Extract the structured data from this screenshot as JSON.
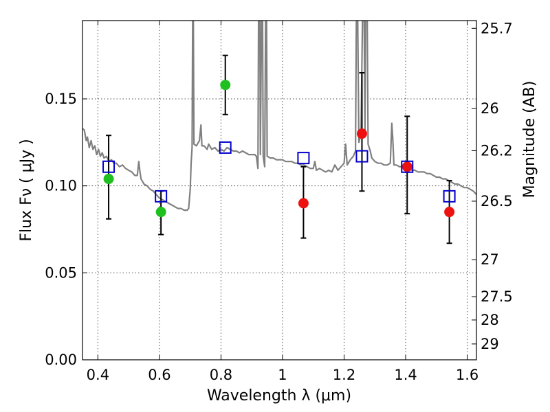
{
  "chart_data": {
    "type": "scatter",
    "xlabel": "Wavelength  λ (μm)",
    "ylabel": "Flux  Fν  ( μJy )",
    "y2label": "Magnitude (AB)",
    "xlim": [
      0.35,
      1.63
    ],
    "ylim": [
      0.0,
      0.195
    ],
    "grid": true,
    "x_ticks": [
      {
        "value": 0.4,
        "label": "0.4"
      },
      {
        "value": 0.6,
        "label": "0.6"
      },
      {
        "value": 0.8,
        "label": "0.8"
      },
      {
        "value": 1.0,
        "label": "1"
      },
      {
        "value": 1.2,
        "label": "1.2"
      },
      {
        "value": 1.4,
        "label": "1.4"
      },
      {
        "value": 1.6,
        "label": "1.6"
      }
    ],
    "y_ticks": [
      {
        "value": 0.0,
        "label": "0.00"
      },
      {
        "value": 0.05,
        "label": "0.05"
      },
      {
        "value": 0.1,
        "label": "0.10"
      },
      {
        "value": 0.15,
        "label": "0.15"
      }
    ],
    "y2_ticks": [
      {
        "mag": 25.7,
        "label": "25.7"
      },
      {
        "mag": 26.0,
        "label": "26"
      },
      {
        "mag": 26.2,
        "label": "26.2"
      },
      {
        "mag": 26.5,
        "label": "26.5"
      },
      {
        "mag": 27.0,
        "label": "27"
      },
      {
        "mag": 27.5,
        "label": "27.5"
      },
      {
        "mag": 28.0,
        "label": "28"
      },
      {
        "mag": 29.0,
        "label": "29"
      }
    ],
    "series": [
      {
        "kind": "line",
        "color": "#808080",
        "points": [
          [
            0.35,
            0.133
          ],
          [
            0.356,
            0.132
          ],
          [
            0.362,
            0.126
          ],
          [
            0.366,
            0.128
          ],
          [
            0.372,
            0.122
          ],
          [
            0.378,
            0.126
          ],
          [
            0.384,
            0.121
          ],
          [
            0.39,
            0.123
          ],
          [
            0.396,
            0.118
          ],
          [
            0.402,
            0.121
          ],
          [
            0.408,
            0.117
          ],
          [
            0.414,
            0.119
          ],
          [
            0.42,
            0.116
          ],
          [
            0.428,
            0.117
          ],
          [
            0.436,
            0.114
          ],
          [
            0.444,
            0.115
          ],
          [
            0.452,
            0.113
          ],
          [
            0.46,
            0.113
          ],
          [
            0.47,
            0.111
          ],
          [
            0.48,
            0.112
          ],
          [
            0.49,
            0.11
          ],
          [
            0.5,
            0.109
          ],
          [
            0.51,
            0.108
          ],
          [
            0.52,
            0.106
          ],
          [
            0.528,
            0.106
          ],
          [
            0.533,
            0.114
          ],
          [
            0.536,
            0.109
          ],
          [
            0.54,
            0.104
          ],
          [
            0.55,
            0.101
          ],
          [
            0.56,
            0.1
          ],
          [
            0.57,
            0.098
          ],
          [
            0.58,
            0.097
          ],
          [
            0.59,
            0.095
          ],
          [
            0.6,
            0.093
          ],
          [
            0.61,
            0.092
          ],
          [
            0.62,
            0.091
          ],
          [
            0.63,
            0.09
          ],
          [
            0.64,
            0.089
          ],
          [
            0.65,
            0.088
          ],
          [
            0.66,
            0.087
          ],
          [
            0.67,
            0.087
          ],
          [
            0.68,
            0.086
          ],
          [
            0.69,
            0.086
          ],
          [
            0.695,
            0.087
          ],
          [
            0.7,
            0.098
          ],
          [
            0.703,
            0.113
          ],
          [
            0.706,
            0.122
          ],
          [
            0.708,
            0.2
          ],
          [
            0.71,
            0.2
          ],
          [
            0.712,
            0.124
          ],
          [
            0.72,
            0.123
          ],
          [
            0.73,
            0.126
          ],
          [
            0.735,
            0.135
          ],
          [
            0.738,
            0.123
          ],
          [
            0.745,
            0.123
          ],
          [
            0.755,
            0.121
          ],
          [
            0.76,
            0.124
          ],
          [
            0.77,
            0.121
          ],
          [
            0.78,
            0.122
          ],
          [
            0.79,
            0.12
          ],
          [
            0.8,
            0.121
          ],
          [
            0.81,
            0.12
          ],
          [
            0.82,
            0.122
          ],
          [
            0.83,
            0.121
          ],
          [
            0.84,
            0.12
          ],
          [
            0.85,
            0.12
          ],
          [
            0.86,
            0.119
          ],
          [
            0.87,
            0.12
          ],
          [
            0.88,
            0.119
          ],
          [
            0.89,
            0.118
          ],
          [
            0.9,
            0.118
          ],
          [
            0.91,
            0.118
          ],
          [
            0.915,
            0.117
          ],
          [
            0.92,
            0.11
          ],
          [
            0.922,
            0.2
          ],
          [
            0.926,
            0.2
          ],
          [
            0.928,
            0.118
          ],
          [
            0.932,
            0.2
          ],
          [
            0.935,
            0.2
          ],
          [
            0.937,
            0.117
          ],
          [
            0.942,
            0.111
          ],
          [
            0.945,
            0.2
          ],
          [
            0.948,
            0.2
          ],
          [
            0.95,
            0.117
          ],
          [
            0.96,
            0.116
          ],
          [
            0.97,
            0.116
          ],
          [
            0.98,
            0.115
          ],
          [
            0.99,
            0.115
          ],
          [
            1.0,
            0.115
          ],
          [
            1.01,
            0.114
          ],
          [
            1.02,
            0.114
          ],
          [
            1.03,
            0.114
          ],
          [
            1.04,
            0.113
          ],
          [
            1.05,
            0.113
          ],
          [
            1.06,
            0.112
          ],
          [
            1.07,
            0.112
          ],
          [
            1.08,
            0.111
          ],
          [
            1.09,
            0.11
          ],
          [
            1.1,
            0.11
          ],
          [
            1.105,
            0.114
          ],
          [
            1.11,
            0.109
          ],
          [
            1.12,
            0.11
          ],
          [
            1.13,
            0.109
          ],
          [
            1.14,
            0.108
          ],
          [
            1.15,
            0.109
          ],
          [
            1.16,
            0.108
          ],
          [
            1.17,
            0.112
          ],
          [
            1.18,
            0.109
          ],
          [
            1.19,
            0.111
          ],
          [
            1.2,
            0.113
          ],
          [
            1.205,
            0.124
          ],
          [
            1.21,
            0.112
          ],
          [
            1.22,
            0.115
          ],
          [
            1.23,
            0.117
          ],
          [
            1.237,
            0.12
          ],
          [
            1.24,
            0.2
          ],
          [
            1.244,
            0.2
          ],
          [
            1.248,
            0.125
          ],
          [
            1.255,
            0.13
          ],
          [
            1.26,
            0.2
          ],
          [
            1.265,
            0.2
          ],
          [
            1.268,
            0.132
          ],
          [
            1.27,
            0.2
          ],
          [
            1.275,
            0.2
          ],
          [
            1.278,
            0.124
          ],
          [
            1.285,
            0.12
          ],
          [
            1.29,
            0.116
          ],
          [
            1.3,
            0.114
          ],
          [
            1.31,
            0.113
          ],
          [
            1.32,
            0.113
          ],
          [
            1.33,
            0.112
          ],
          [
            1.34,
            0.112
          ],
          [
            1.35,
            0.113
          ],
          [
            1.355,
            0.136
          ],
          [
            1.358,
            0.128
          ],
          [
            1.362,
            0.112
          ],
          [
            1.37,
            0.112
          ],
          [
            1.38,
            0.111
          ],
          [
            1.39,
            0.111
          ],
          [
            1.4,
            0.11
          ],
          [
            1.41,
            0.11
          ],
          [
            1.42,
            0.109
          ],
          [
            1.43,
            0.109
          ],
          [
            1.44,
            0.108
          ],
          [
            1.45,
            0.108
          ],
          [
            1.46,
            0.108
          ],
          [
            1.47,
            0.107
          ],
          [
            1.48,
            0.107
          ],
          [
            1.49,
            0.106
          ],
          [
            1.5,
            0.105
          ],
          [
            1.51,
            0.105
          ],
          [
            1.52,
            0.104
          ],
          [
            1.53,
            0.104
          ],
          [
            1.54,
            0.103
          ],
          [
            1.55,
            0.102
          ],
          [
            1.56,
            0.101
          ],
          [
            1.57,
            0.101
          ],
          [
            1.58,
            0.1
          ],
          [
            1.59,
            0.099
          ],
          [
            1.6,
            0.099
          ],
          [
            1.61,
            0.098
          ],
          [
            1.62,
            0.097
          ],
          [
            1.63,
            0.095
          ]
        ]
      },
      {
        "kind": "points",
        "marker": "filled-circle",
        "color": "#1fbf1f",
        "points": [
          {
            "x": 0.435,
            "y": 0.104,
            "err": [
              0.081,
              0.129
            ]
          },
          {
            "x": 0.605,
            "y": 0.085,
            "err": [
              0.072,
              0.097
            ]
          },
          {
            "x": 0.814,
            "y": 0.158,
            "err": [
              0.141,
              0.175
            ]
          }
        ]
      },
      {
        "kind": "points",
        "marker": "filled-circle",
        "color": "#ee1111",
        "points": [
          {
            "x": 1.068,
            "y": 0.09,
            "err": [
              0.07,
              0.111
            ]
          },
          {
            "x": 1.258,
            "y": 0.13,
            "err": [
              0.097,
              0.165
            ]
          },
          {
            "x": 1.405,
            "y": 0.111,
            "err": [
              0.084,
              0.14
            ]
          },
          {
            "x": 1.542,
            "y": 0.085,
            "err": [
              0.067,
              0.103
            ]
          }
        ]
      },
      {
        "kind": "points",
        "marker": "open-square",
        "color": "#0000cc",
        "points": [
          {
            "x": 0.435,
            "y": 0.111
          },
          {
            "x": 0.605,
            "y": 0.094
          },
          {
            "x": 0.814,
            "y": 0.122
          },
          {
            "x": 1.068,
            "y": 0.116
          },
          {
            "x": 1.258,
            "y": 0.117
          },
          {
            "x": 1.405,
            "y": 0.111
          },
          {
            "x": 1.542,
            "y": 0.094
          }
        ]
      }
    ]
  }
}
